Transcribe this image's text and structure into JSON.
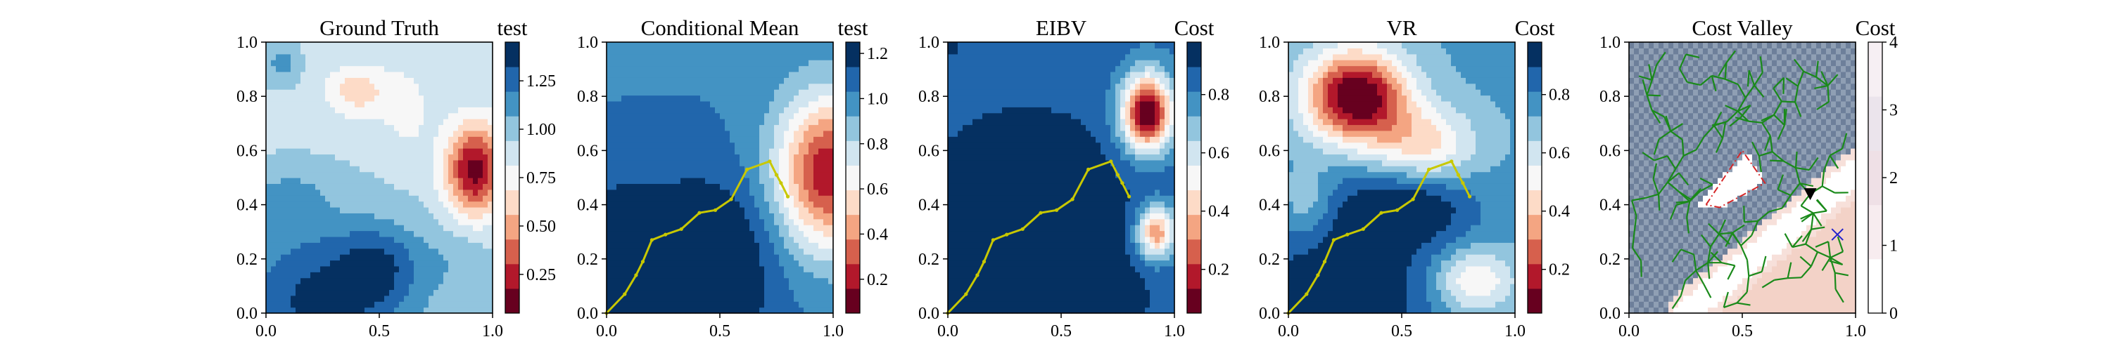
{
  "figure": {
    "background": "#ffffff",
    "panel_count": 5
  },
  "colormaps": {
    "RdBu": [
      "#67001f",
      "#b2182b",
      "#d6604d",
      "#f4a582",
      "#fddbc7",
      "#f7f7f7",
      "#d1e5f0",
      "#92c5de",
      "#4393c3",
      "#2166ac",
      "#053061"
    ],
    "Reds_light": [
      "#fff5f0",
      "#fee0d2",
      "#fcbba1",
      "#fc9272",
      "#fb6a4a"
    ],
    "cost_valley_map": [
      "#f7e0da",
      "#f3d2c7",
      "#8f9fb4",
      "#6d7f9a"
    ]
  },
  "path_color": "#c8c800",
  "tree_color": "#1a8a1a",
  "chart_data": [
    {
      "type": "heatmap",
      "title": "Ground Truth",
      "xlim": [
        0,
        1
      ],
      "ylim": [
        0,
        1
      ],
      "xticks": [
        "0.0",
        "0.5",
        "1.0"
      ],
      "yticks": [
        "0.0",
        "0.2",
        "0.4",
        "0.6",
        "0.8",
        "1.0"
      ],
      "colorbar": {
        "title": "test",
        "range": [
          0.05,
          1.45
        ],
        "ticks": [
          "0.25",
          "0.50",
          "0.75",
          "1.00",
          "1.25"
        ],
        "tick_values": [
          0.25,
          0.5,
          0.75,
          1.0,
          1.25
        ],
        "levels": 11
      },
      "field": {
        "base": 0.92,
        "bumps": [
          {
            "x": 0.92,
            "y": 0.53,
            "amp": -0.8,
            "sx": 0.09,
            "sy": 0.12
          },
          {
            "x": 0.4,
            "y": 0.82,
            "amp": -0.3,
            "sx": 0.1,
            "sy": 0.07
          },
          {
            "x": 0.62,
            "y": 0.75,
            "amp": -0.15,
            "sx": 0.08,
            "sy": 0.12
          },
          {
            "x": 0.25,
            "y": 0.05,
            "amp": 0.45,
            "sx": 0.28,
            "sy": 0.2
          },
          {
            "x": 0.5,
            "y": 0.18,
            "amp": 0.25,
            "sx": 0.12,
            "sy": 0.1
          },
          {
            "x": 0.1,
            "y": 0.42,
            "amp": 0.18,
            "sx": 0.12,
            "sy": 0.08
          },
          {
            "x": 0.85,
            "y": 0.2,
            "amp": 0.1,
            "sx": 0.12,
            "sy": 0.1
          },
          {
            "x": 0.07,
            "y": 0.92,
            "amp": 0.2,
            "sx": 0.05,
            "sy": 0.05
          }
        ]
      },
      "path": null
    },
    {
      "type": "heatmap",
      "title": "Conditional Mean",
      "xlim": [
        0,
        1
      ],
      "ylim": [
        0,
        1
      ],
      "xticks": [
        "0.0",
        "0.5",
        "1.0"
      ],
      "yticks": [
        "0.0",
        "0.2",
        "0.4",
        "0.6",
        "0.8",
        "1.0"
      ],
      "colorbar": {
        "title": "test",
        "range": [
          0.05,
          1.25
        ],
        "ticks": [
          "0.2",
          "0.4",
          "0.6",
          "0.8",
          "1.0",
          "1.2"
        ],
        "tick_values": [
          0.2,
          0.4,
          0.6,
          0.8,
          1.0,
          1.2
        ],
        "levels": 11
      },
      "field": {
        "base": 1.02,
        "bumps": [
          {
            "x": 0.98,
            "y": 0.52,
            "amp": -0.85,
            "sx": 0.16,
            "sy": 0.2
          },
          {
            "x": 0.25,
            "y": 0.05,
            "amp": 0.3,
            "sx": 0.3,
            "sy": 0.3
          },
          {
            "x": 0.5,
            "y": 0.25,
            "amp": 0.15,
            "sx": 0.15,
            "sy": 0.15
          },
          {
            "x": 0.05,
            "y": 0.15,
            "amp": 0.1,
            "sx": 0.1,
            "sy": 0.2
          }
        ]
      },
      "path": [
        [
          0.0,
          0.0
        ],
        [
          0.08,
          0.07
        ],
        [
          0.13,
          0.14
        ],
        [
          0.16,
          0.19
        ],
        [
          0.2,
          0.27
        ],
        [
          0.26,
          0.29
        ],
        [
          0.33,
          0.31
        ],
        [
          0.41,
          0.37
        ],
        [
          0.48,
          0.38
        ],
        [
          0.55,
          0.42
        ],
        [
          0.62,
          0.53
        ],
        [
          0.72,
          0.56
        ],
        [
          0.75,
          0.51
        ],
        [
          0.77,
          0.48
        ],
        [
          0.8,
          0.43
        ]
      ]
    },
    {
      "type": "heatmap",
      "title": "EIBV",
      "xlim": [
        0,
        1
      ],
      "ylim": [
        0,
        1
      ],
      "xticks": [
        "0.0",
        "0.5",
        "1.0"
      ],
      "yticks": [
        "0.0",
        "0.2",
        "0.4",
        "0.6",
        "0.8",
        "1.0"
      ],
      "colorbar": {
        "title": "Cost",
        "range": [
          0.05,
          0.98
        ],
        "ticks": [
          "0.2",
          "0.4",
          "0.6",
          "0.8"
        ],
        "tick_values": [
          0.2,
          0.4,
          0.6,
          0.8
        ],
        "levels": 11
      },
      "field": {
        "base": 0.84,
        "bumps": [
          {
            "x": 0.88,
            "y": 0.74,
            "amp": -0.8,
            "sx": 0.08,
            "sy": 0.1
          },
          {
            "x": 0.92,
            "y": 0.3,
            "amp": -0.55,
            "sx": 0.06,
            "sy": 0.07
          },
          {
            "x": 0.35,
            "y": 0.2,
            "amp": 0.2,
            "sx": 0.35,
            "sy": 0.35
          },
          {
            "x": 0.0,
            "y": 1.0,
            "amp": 0.15,
            "sx": 0.03,
            "sy": 0.03
          }
        ]
      },
      "path": [
        [
          0.0,
          0.0
        ],
        [
          0.08,
          0.07
        ],
        [
          0.13,
          0.14
        ],
        [
          0.16,
          0.19
        ],
        [
          0.2,
          0.27
        ],
        [
          0.26,
          0.29
        ],
        [
          0.33,
          0.31
        ],
        [
          0.41,
          0.37
        ],
        [
          0.48,
          0.38
        ],
        [
          0.55,
          0.42
        ],
        [
          0.62,
          0.53
        ],
        [
          0.72,
          0.56
        ],
        [
          0.75,
          0.51
        ],
        [
          0.77,
          0.48
        ],
        [
          0.8,
          0.43
        ]
      ]
    },
    {
      "type": "heatmap",
      "title": "VR",
      "xlim": [
        0,
        1
      ],
      "ylim": [
        0,
        1
      ],
      "xticks": [
        "0.0",
        "0.5",
        "1.0"
      ],
      "yticks": [
        "0.0",
        "0.2",
        "0.4",
        "0.6",
        "0.8",
        "1.0"
      ],
      "colorbar": {
        "title": "Cost",
        "range": [
          0.05,
          0.98
        ],
        "ticks": [
          "0.2",
          "0.4",
          "0.6",
          "0.8"
        ],
        "tick_values": [
          0.2,
          0.4,
          0.6,
          0.8
        ],
        "levels": 11
      },
      "field": {
        "base": 0.74,
        "bumps": [
          {
            "x": 0.3,
            "y": 0.8,
            "amp": -0.72,
            "sx": 0.16,
            "sy": 0.12
          },
          {
            "x": 0.6,
            "y": 0.62,
            "amp": -0.3,
            "sx": 0.16,
            "sy": 0.1
          },
          {
            "x": 0.82,
            "y": 0.12,
            "amp": -0.3,
            "sx": 0.12,
            "sy": 0.08
          },
          {
            "x": 0.08,
            "y": 0.4,
            "amp": -0.15,
            "sx": 0.08,
            "sy": 0.1
          },
          {
            "x": 0.25,
            "y": 0.1,
            "amp": 0.25,
            "sx": 0.3,
            "sy": 0.25
          },
          {
            "x": 0.55,
            "y": 0.4,
            "amp": 0.2,
            "sx": 0.2,
            "sy": 0.1
          }
        ]
      },
      "path": [
        [
          0.0,
          0.0
        ],
        [
          0.08,
          0.07
        ],
        [
          0.13,
          0.14
        ],
        [
          0.16,
          0.19
        ],
        [
          0.2,
          0.27
        ],
        [
          0.26,
          0.29
        ],
        [
          0.33,
          0.31
        ],
        [
          0.41,
          0.37
        ],
        [
          0.48,
          0.38
        ],
        [
          0.55,
          0.42
        ],
        [
          0.62,
          0.53
        ],
        [
          0.72,
          0.56
        ],
        [
          0.75,
          0.51
        ],
        [
          0.77,
          0.48
        ],
        [
          0.8,
          0.43
        ]
      ]
    },
    {
      "type": "heatmap",
      "title": "Cost Valley",
      "xlim": [
        0,
        1
      ],
      "ylim": [
        0,
        1
      ],
      "xticks": [
        "0.0",
        "0.5",
        "1.0"
      ],
      "yticks": [
        "0.0",
        "0.2",
        "0.4",
        "0.6",
        "0.8",
        "1.0"
      ],
      "colorbar": {
        "title": "Cost",
        "range": [
          0,
          4
        ],
        "ticks": [
          "0",
          "1",
          "2",
          "3",
          "4"
        ],
        "tick_values": [
          0,
          1,
          2,
          3,
          4
        ],
        "levels": 5
      },
      "field": {
        "valley": {
          "x1": 0.25,
          "y1": 0.0,
          "x2": 1.0,
          "y2": 0.52,
          "width": 0.09
        },
        "obstacle": [
          [
            0.3,
            0.4
          ],
          [
            0.52,
            0.6
          ],
          [
            0.6,
            0.48
          ],
          [
            0.4,
            0.38
          ]
        ]
      },
      "obstacle_outline": [
        [
          0.34,
          0.4
        ],
        [
          0.5,
          0.6
        ],
        [
          0.6,
          0.48
        ],
        [
          0.4,
          0.39
        ],
        [
          0.34,
          0.4
        ]
      ],
      "current_location": [
        0.8,
        0.44
      ],
      "target_marker": [
        0.92,
        0.29
      ],
      "tree_seed": 7,
      "path": null
    }
  ]
}
